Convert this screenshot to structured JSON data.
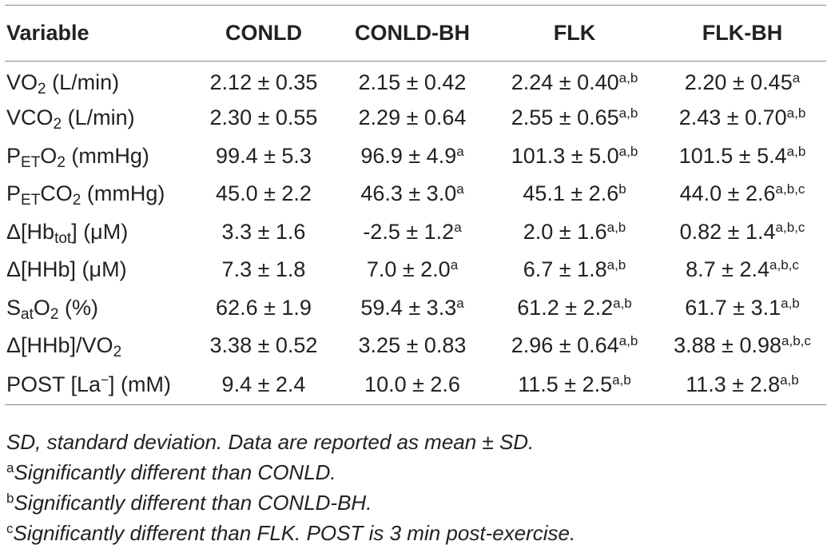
{
  "columns": [
    "Variable",
    "CONLD",
    "CONLD-BH",
    "FLK",
    "FLK-BH"
  ],
  "rows": [
    {
      "name": "VO2 (L/min)",
      "var": {
        "pre": "VO",
        "sub": "2",
        "post": " (L/min)"
      },
      "cells": [
        {
          "v": "2.12 ± 0.35",
          "s": ""
        },
        {
          "v": "2.15 ± 0.42",
          "s": ""
        },
        {
          "v": "2.24 ± 0.40",
          "s": "a,b"
        },
        {
          "v": "2.20 ± 0.45",
          "s": "a"
        }
      ]
    },
    {
      "name": "VCO2 (L/min)",
      "var": {
        "pre": "VCO",
        "sub": "2",
        "post": " (L/min)"
      },
      "cells": [
        {
          "v": "2.30 ± 0.55",
          "s": ""
        },
        {
          "v": "2.29 ± 0.64",
          "s": ""
        },
        {
          "v": "2.55 ± 0.65",
          "s": "a,b"
        },
        {
          "v": "2.43 ± 0.70",
          "s": "a,b"
        }
      ]
    },
    {
      "name": "PETO2 (mmHg)",
      "var": {
        "pre": "P",
        "sub": "ET",
        "mid": "O",
        "sub2": "2",
        "post": " (mmHg)"
      },
      "cells": [
        {
          "v": "99.4 ± 5.3",
          "s": ""
        },
        {
          "v": "96.9 ± 4.9",
          "s": "a"
        },
        {
          "v": "101.3 ± 5.0",
          "s": "a,b"
        },
        {
          "v": "101.5 ± 5.4",
          "s": "a,b"
        }
      ]
    },
    {
      "name": "PETCO2 (mmHg)",
      "var": {
        "pre": "P",
        "sub": "ET",
        "mid": "CO",
        "sub2": "2",
        "post": " (mmHg)"
      },
      "cells": [
        {
          "v": "45.0 ± 2.2",
          "s": ""
        },
        {
          "v": "46.3 ± 3.0",
          "s": "a"
        },
        {
          "v": "45.1 ± 2.6",
          "s": "b"
        },
        {
          "v": "44.0 ± 2.6",
          "s": "a,b,c"
        }
      ]
    },
    {
      "name": "Δ[Hbtot] (μM)",
      "var": {
        "pre": "Δ[Hb",
        "sub": "tot",
        "post": "] (μM)"
      },
      "cells": [
        {
          "v": "3.3 ± 1.6",
          "s": ""
        },
        {
          "v": "-2.5 ± 1.2",
          "s": "a"
        },
        {
          "v": "2.0 ± 1.6",
          "s": "a,b"
        },
        {
          "v": "0.82 ± 1.4",
          "s": "a,b,c"
        }
      ]
    },
    {
      "name": "Δ[HHb] (μM)",
      "var": {
        "pre": "Δ[HHb] (μM)"
      },
      "cells": [
        {
          "v": "7.3 ± 1.8",
          "s": ""
        },
        {
          "v": "7.0 ± 2.0",
          "s": "a"
        },
        {
          "v": "6.7 ± 1.8",
          "s": "a,b"
        },
        {
          "v": "8.7 ± 2.4",
          "s": "a,b,c"
        }
      ]
    },
    {
      "name": "SatO2 (%)",
      "var": {
        "pre": "S",
        "sub": "at",
        "mid": "O",
        "sub2": "2",
        "post": " (%)"
      },
      "cells": [
        {
          "v": "62.6 ± 1.9",
          "s": ""
        },
        {
          "v": "59.4 ± 3.3",
          "s": "a"
        },
        {
          "v": "61.2 ± 2.2",
          "s": "a,b"
        },
        {
          "v": "61.7 ± 3.1",
          "s": "a,b"
        }
      ]
    },
    {
      "name": "Δ[HHb]/VO2",
      "var": {
        "pre": "Δ[HHb]/VO",
        "sub": "2"
      },
      "cells": [
        {
          "v": "3.38 ± 0.52",
          "s": ""
        },
        {
          "v": "3.25 ± 0.83",
          "s": ""
        },
        {
          "v": "2.96 ± 0.64",
          "s": "a,b"
        },
        {
          "v": "3.88 ± 0.98",
          "s": "a,b,c"
        }
      ]
    },
    {
      "name": "POST [La−] (mM)",
      "var": {
        "pre": "POST [La",
        "sup": "−",
        "post": "] (mM)"
      },
      "cells": [
        {
          "v": "9.4 ± 2.4",
          "s": ""
        },
        {
          "v": "10.0 ± 2.6",
          "s": ""
        },
        {
          "v": "11.5 ± 2.5",
          "s": "a,b"
        },
        {
          "v": "11.3 ± 2.8",
          "s": "a,b"
        }
      ]
    }
  ],
  "footnotes": {
    "sd": "SD, standard deviation. Data are reported as mean ± SD.",
    "a_mark": "a",
    "a_text": "Significantly different than CONLD.",
    "b_mark": "b",
    "b_text": "Significantly different than CONLD-BH.",
    "c_mark": "c",
    "c_text": "Significantly different than FLK. POST is 3 min post-exercise."
  }
}
